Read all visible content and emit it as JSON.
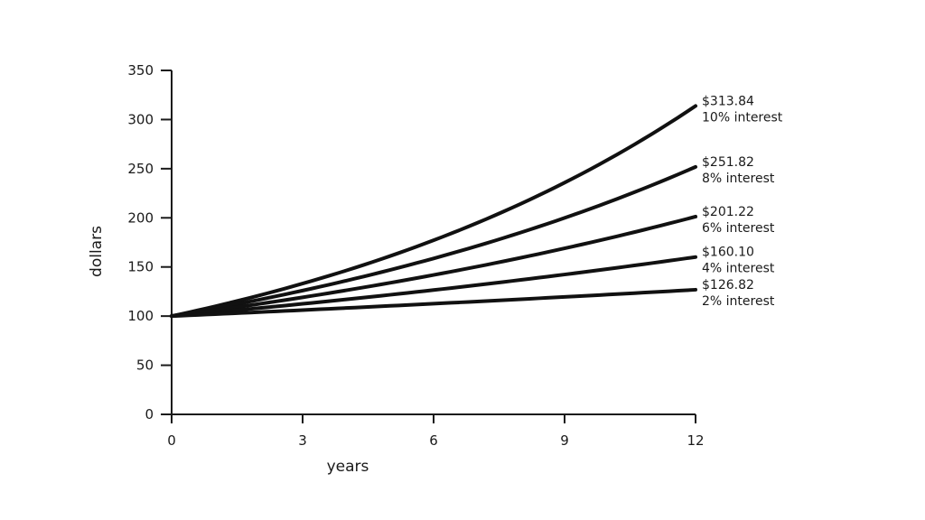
{
  "chart_data": {
    "type": "line",
    "title": "",
    "xlabel": "years",
    "ylabel": "dollars",
    "xlim": [
      0,
      12
    ],
    "ylim": [
      0,
      350
    ],
    "x_ticks": [
      "0",
      "3",
      "6",
      "9",
      "12"
    ],
    "y_ticks": [
      "0",
      "50",
      "100",
      "150",
      "200",
      "250",
      "300",
      "350"
    ],
    "grid": false,
    "principal": 100,
    "series": [
      {
        "name": "10% interest",
        "rate": 0.1,
        "end_value": 313.84,
        "end_label": "$313.84"
      },
      {
        "name": "8% interest",
        "rate": 0.08,
        "end_value": 251.82,
        "end_label": "$251.82"
      },
      {
        "name": "6% interest",
        "rate": 0.06,
        "end_value": 201.22,
        "end_label": "$201.22"
      },
      {
        "name": "4% interest",
        "rate": 0.04,
        "end_value": 160.1,
        "end_label": "$160.10"
      },
      {
        "name": "2% interest",
        "rate": 0.02,
        "end_value": 126.82,
        "end_label": "$126.82"
      }
    ]
  }
}
